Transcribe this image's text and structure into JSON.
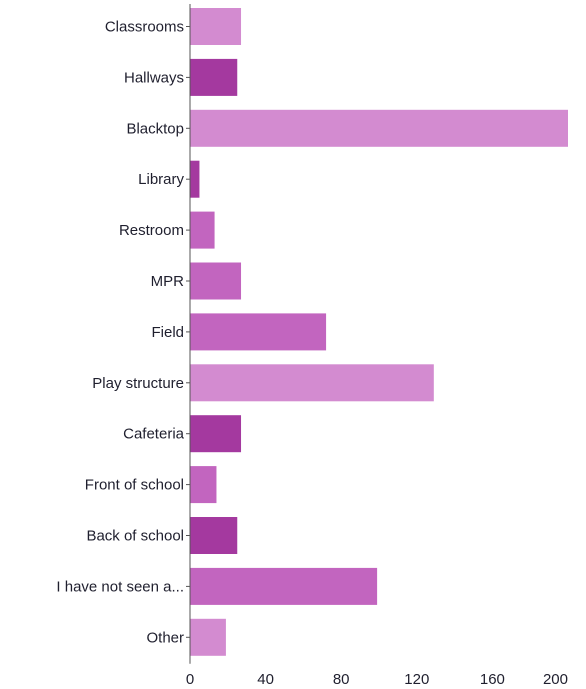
{
  "chart_data": {
    "type": "bar",
    "orientation": "horizontal",
    "categories": [
      "Classrooms",
      "Hallways",
      "Blacktop",
      "Library",
      "Restroom",
      "MPR",
      "Field",
      "Play structure",
      "Cafeteria",
      "Front of school",
      "Back of school",
      "I have not seen a...",
      "Other"
    ],
    "values": [
      27,
      25,
      200,
      5,
      13,
      27,
      72,
      129,
      27,
      14,
      25,
      99,
      19
    ],
    "xlim": [
      0,
      200
    ],
    "xticks": [
      0,
      40,
      80,
      120,
      160,
      200
    ],
    "grid": false,
    "colors": {
      "light": "#d38bd0",
      "medium": "#c265bf",
      "dark": "#a4399f"
    },
    "bar_shades": [
      "light",
      "dark",
      "light",
      "dark",
      "medium",
      "medium",
      "medium",
      "light",
      "dark",
      "medium",
      "dark",
      "medium",
      "light"
    ]
  }
}
